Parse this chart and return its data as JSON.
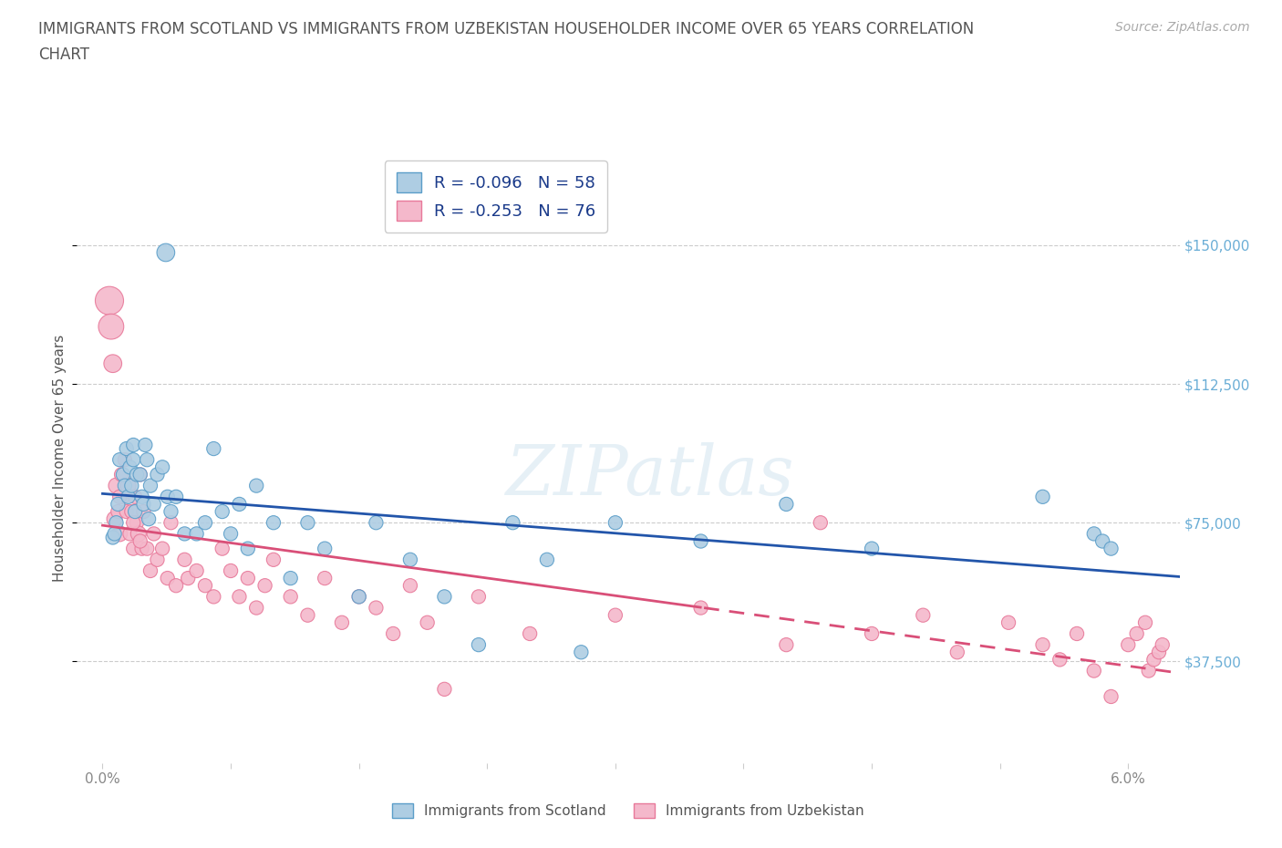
{
  "title_line1": "IMMIGRANTS FROM SCOTLAND VS IMMIGRANTS FROM UZBEKISTAN HOUSEHOLDER INCOME OVER 65 YEARS CORRELATION",
  "title_line2": "CHART",
  "source_text": "Source: ZipAtlas.com",
  "ylabel": "Householder Income Over 65 years",
  "xlim": [
    -0.1,
    6.3
  ],
  "ylim": [
    10000,
    175000
  ],
  "yticks": [
    37500,
    75000,
    112500,
    150000
  ],
  "xtick_positions": [
    0,
    0.75,
    1.5,
    2.25,
    3.0,
    3.75,
    4.5,
    5.25,
    6.0
  ],
  "watermark": "ZIPatlas",
  "scotland_R": -0.096,
  "scotland_N": 58,
  "uzbekistan_R": -0.253,
  "uzbekistan_N": 76,
  "scotland_color": "#aecde3",
  "uzbekistan_color": "#f4b8cb",
  "scotland_edge_color": "#5b9ec9",
  "uzbekistan_edge_color": "#e8799a",
  "scotland_line_color": "#2255aa",
  "uzbekistan_line_color": "#d94f78",
  "background_color": "#ffffff",
  "grid_color": "#cccccc",
  "title_color": "#555555",
  "tick_color": "#888888",
  "yaxis_color": "#6baed6",
  "legend_label_scotland": "Immigrants from Scotland",
  "legend_label_uzbekistan": "Immigrants from Uzbekistan",
  "scotland_x": [
    0.37,
    0.08,
    0.06,
    0.1,
    0.12,
    0.13,
    0.09,
    0.07,
    0.14,
    0.15,
    0.16,
    0.17,
    0.18,
    0.19,
    0.2,
    0.18,
    0.22,
    0.23,
    0.24,
    0.26,
    0.27,
    0.28,
    0.3,
    0.32,
    0.25,
    0.35,
    0.38,
    0.4,
    0.43,
    0.48,
    0.55,
    0.6,
    0.65,
    0.7,
    0.75,
    0.8,
    0.85,
    0.9,
    1.0,
    1.1,
    1.2,
    1.3,
    1.5,
    1.6,
    1.8,
    2.0,
    2.2,
    2.4,
    2.6,
    2.8,
    3.0,
    3.5,
    4.0,
    4.5,
    5.5,
    5.8,
    5.85,
    5.9
  ],
  "scotland_y": [
    148000,
    75000,
    71000,
    92000,
    88000,
    85000,
    80000,
    72000,
    95000,
    82000,
    90000,
    85000,
    92000,
    78000,
    88000,
    96000,
    88000,
    82000,
    80000,
    92000,
    76000,
    85000,
    80000,
    88000,
    96000,
    90000,
    82000,
    78000,
    82000,
    72000,
    72000,
    75000,
    95000,
    78000,
    72000,
    80000,
    68000,
    85000,
    75000,
    60000,
    75000,
    68000,
    55000,
    75000,
    65000,
    55000,
    42000,
    75000,
    65000,
    40000,
    75000,
    70000,
    80000,
    68000,
    82000,
    72000,
    70000,
    68000
  ],
  "scotland_sizes": [
    200,
    120,
    120,
    120,
    120,
    120,
    120,
    120,
    120,
    120,
    120,
    120,
    120,
    120,
    120,
    120,
    120,
    120,
    120,
    120,
    120,
    120,
    120,
    120,
    120,
    120,
    120,
    120,
    120,
    120,
    120,
    120,
    120,
    120,
    120,
    120,
    120,
    120,
    120,
    120,
    120,
    120,
    120,
    120,
    120,
    120,
    120,
    120,
    120,
    120,
    120,
    120,
    120,
    120,
    120,
    120,
    120,
    120
  ],
  "uzbekistan_x": [
    0.04,
    0.05,
    0.06,
    0.07,
    0.08,
    0.09,
    0.1,
    0.11,
    0.12,
    0.13,
    0.14,
    0.15,
    0.16,
    0.17,
    0.18,
    0.19,
    0.2,
    0.21,
    0.22,
    0.23,
    0.24,
    0.1,
    0.26,
    0.18,
    0.28,
    0.22,
    0.3,
    0.32,
    0.35,
    0.38,
    0.4,
    0.43,
    0.48,
    0.5,
    0.55,
    0.6,
    0.65,
    0.7,
    0.75,
    0.8,
    0.85,
    0.9,
    0.95,
    1.0,
    1.1,
    1.2,
    1.3,
    1.4,
    1.5,
    1.6,
    1.7,
    1.8,
    1.9,
    2.0,
    2.2,
    2.5,
    3.0,
    3.5,
    4.0,
    4.2,
    4.5,
    4.8,
    5.0,
    5.3,
    5.5,
    5.6,
    5.7,
    5.8,
    5.9,
    6.0,
    6.05,
    6.1,
    6.12,
    6.15,
    6.18,
    6.2
  ],
  "uzbekistan_y": [
    135000,
    128000,
    118000,
    76000,
    85000,
    78000,
    72000,
    88000,
    82000,
    92000,
    78000,
    85000,
    72000,
    78000,
    68000,
    82000,
    75000,
    72000,
    88000,
    68000,
    78000,
    82000,
    68000,
    75000,
    62000,
    70000,
    72000,
    65000,
    68000,
    60000,
    75000,
    58000,
    65000,
    60000,
    62000,
    58000,
    55000,
    68000,
    62000,
    55000,
    60000,
    52000,
    58000,
    65000,
    55000,
    50000,
    60000,
    48000,
    55000,
    52000,
    45000,
    58000,
    48000,
    30000,
    55000,
    45000,
    50000,
    52000,
    42000,
    75000,
    45000,
    50000,
    40000,
    48000,
    42000,
    38000,
    45000,
    35000,
    28000,
    42000,
    45000,
    48000,
    35000,
    38000,
    40000,
    42000
  ],
  "uzbekistan_sizes": [
    500,
    400,
    200,
    150,
    150,
    120,
    150,
    120,
    120,
    120,
    120,
    150,
    120,
    120,
    120,
    120,
    120,
    150,
    120,
    120,
    120,
    120,
    120,
    120,
    120,
    120,
    120,
    120,
    120,
    120,
    120,
    120,
    120,
    120,
    120,
    120,
    120,
    120,
    120,
    120,
    120,
    120,
    120,
    120,
    120,
    120,
    120,
    120,
    120,
    120,
    120,
    120,
    120,
    120,
    120,
    120,
    120,
    120,
    120,
    120,
    120,
    120,
    120,
    120,
    120,
    120,
    120,
    120,
    120,
    120,
    120,
    120,
    120,
    120,
    120,
    120
  ]
}
